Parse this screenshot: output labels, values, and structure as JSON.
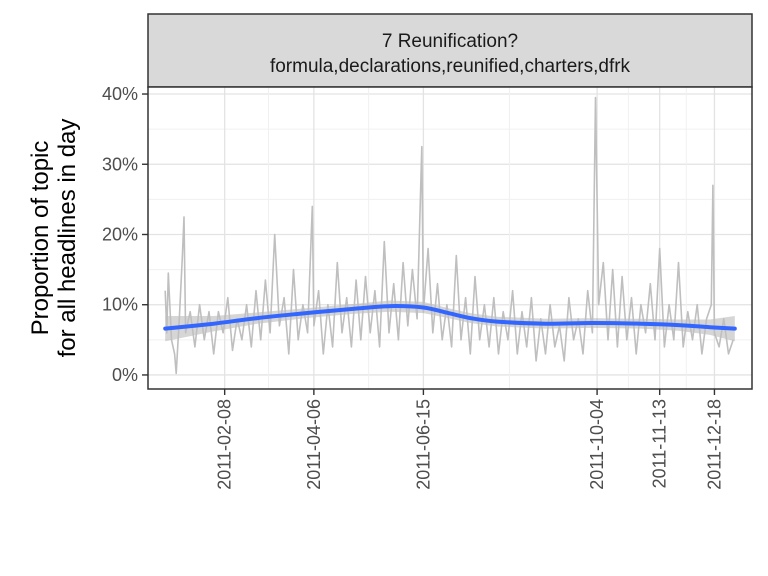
{
  "chart_data": {
    "type": "line",
    "panel": {
      "title": "7 Reunification?",
      "subtitle": "formula,declarations,reunified,charters,dfrk"
    },
    "ylabel_lines": [
      "Proportion of topic",
      "for all headlines in day"
    ],
    "xlabel": "",
    "x_range": [
      "2011-01-01",
      "2011-12-31"
    ],
    "y_range": [
      -0.02,
      0.41
    ],
    "x_ticks": [
      "2011-02-08",
      "2011-04-06",
      "2011-06-15",
      "2011-10-04",
      "2011-11-13",
      "2011-12-18"
    ],
    "y_ticks": [
      0,
      0.1,
      0.2,
      0.3,
      0.4
    ],
    "y_tick_labels": [
      "0%",
      "10%",
      "20%",
      "30%",
      "40%"
    ],
    "grid": true,
    "series": [
      {
        "kind": "raw",
        "color": "#bfbfbf",
        "points": [
          [
            "2011-01-01",
            0.12
          ],
          [
            "2011-01-02",
            0.06
          ],
          [
            "2011-01-03",
            0.145
          ],
          [
            "2011-01-05",
            0.05
          ],
          [
            "2011-01-07",
            0.03
          ],
          [
            "2011-01-08",
            0.002
          ],
          [
            "2011-01-10",
            0.08
          ],
          [
            "2011-01-12",
            0.17
          ],
          [
            "2011-01-13",
            0.225
          ],
          [
            "2011-01-14",
            0.06
          ],
          [
            "2011-01-17",
            0.09
          ],
          [
            "2011-01-20",
            0.04
          ],
          [
            "2011-01-23",
            0.1
          ],
          [
            "2011-01-26",
            0.05
          ],
          [
            "2011-01-29",
            0.09
          ],
          [
            "2011-02-01",
            0.03
          ],
          [
            "2011-02-04",
            0.09
          ],
          [
            "2011-02-07",
            0.06
          ],
          [
            "2011-02-10",
            0.11
          ],
          [
            "2011-02-13",
            0.035
          ],
          [
            "2011-02-16",
            0.08
          ],
          [
            "2011-02-19",
            0.05
          ],
          [
            "2011-02-22",
            0.1
          ],
          [
            "2011-02-25",
            0.04
          ],
          [
            "2011-02-28",
            0.12
          ],
          [
            "2011-03-03",
            0.05
          ],
          [
            "2011-03-06",
            0.135
          ],
          [
            "2011-03-09",
            0.06
          ],
          [
            "2011-03-12",
            0.2
          ],
          [
            "2011-03-15",
            0.07
          ],
          [
            "2011-03-18",
            0.11
          ],
          [
            "2011-03-21",
            0.03
          ],
          [
            "2011-03-24",
            0.15
          ],
          [
            "2011-03-27",
            0.05
          ],
          [
            "2011-03-30",
            0.1
          ],
          [
            "2011-04-02",
            0.06
          ],
          [
            "2011-04-05",
            0.24
          ],
          [
            "2011-04-06",
            0.07
          ],
          [
            "2011-04-09",
            0.12
          ],
          [
            "2011-04-12",
            0.03
          ],
          [
            "2011-04-15",
            0.1
          ],
          [
            "2011-04-18",
            0.04
          ],
          [
            "2011-04-21",
            0.16
          ],
          [
            "2011-04-24",
            0.06
          ],
          [
            "2011-04-27",
            0.11
          ],
          [
            "2011-04-30",
            0.04
          ],
          [
            "2011-05-03",
            0.135
          ],
          [
            "2011-05-06",
            0.05
          ],
          [
            "2011-05-09",
            0.14
          ],
          [
            "2011-05-12",
            0.06
          ],
          [
            "2011-05-15",
            0.12
          ],
          [
            "2011-05-18",
            0.04
          ],
          [
            "2011-05-21",
            0.19
          ],
          [
            "2011-05-24",
            0.06
          ],
          [
            "2011-05-27",
            0.13
          ],
          [
            "2011-05-30",
            0.05
          ],
          [
            "2011-06-02",
            0.16
          ],
          [
            "2011-06-05",
            0.07
          ],
          [
            "2011-06-08",
            0.15
          ],
          [
            "2011-06-11",
            0.08
          ],
          [
            "2011-06-14",
            0.325
          ],
          [
            "2011-06-15",
            0.09
          ],
          [
            "2011-06-18",
            0.18
          ],
          [
            "2011-06-21",
            0.06
          ],
          [
            "2011-06-24",
            0.13
          ],
          [
            "2011-06-27",
            0.05
          ],
          [
            "2011-06-30",
            0.1
          ],
          [
            "2011-07-03",
            0.04
          ],
          [
            "2011-07-06",
            0.17
          ],
          [
            "2011-07-09",
            0.05
          ],
          [
            "2011-07-12",
            0.11
          ],
          [
            "2011-07-15",
            0.03
          ],
          [
            "2011-07-18",
            0.14
          ],
          [
            "2011-07-21",
            0.05
          ],
          [
            "2011-07-24",
            0.1
          ],
          [
            "2011-07-27",
            0.04
          ],
          [
            "2011-07-30",
            0.11
          ],
          [
            "2011-08-02",
            0.03
          ],
          [
            "2011-08-05",
            0.09
          ],
          [
            "2011-08-08",
            0.05
          ],
          [
            "2011-08-11",
            0.12
          ],
          [
            "2011-08-14",
            0.03
          ],
          [
            "2011-08-17",
            0.09
          ],
          [
            "2011-08-20",
            0.04
          ],
          [
            "2011-08-23",
            0.11
          ],
          [
            "2011-08-26",
            0.02
          ],
          [
            "2011-08-29",
            0.08
          ],
          [
            "2011-09-01",
            0.03
          ],
          [
            "2011-09-04",
            0.1
          ],
          [
            "2011-09-07",
            0.04
          ],
          [
            "2011-09-10",
            0.07
          ],
          [
            "2011-09-13",
            0.02
          ],
          [
            "2011-09-16",
            0.11
          ],
          [
            "2011-09-19",
            0.05
          ],
          [
            "2011-09-22",
            0.08
          ],
          [
            "2011-09-25",
            0.03
          ],
          [
            "2011-09-28",
            0.12
          ],
          [
            "2011-10-01",
            0.06
          ],
          [
            "2011-10-03",
            0.395
          ],
          [
            "2011-10-05",
            0.1
          ],
          [
            "2011-10-08",
            0.16
          ],
          [
            "2011-10-11",
            0.05
          ],
          [
            "2011-10-14",
            0.15
          ],
          [
            "2011-10-17",
            0.04
          ],
          [
            "2011-10-20",
            0.14
          ],
          [
            "2011-10-23",
            0.05
          ],
          [
            "2011-10-26",
            0.11
          ],
          [
            "2011-10-29",
            0.03
          ],
          [
            "2011-11-01",
            0.1
          ],
          [
            "2011-11-04",
            0.06
          ],
          [
            "2011-11-07",
            0.13
          ],
          [
            "2011-11-10",
            0.05
          ],
          [
            "2011-11-13",
            0.18
          ],
          [
            "2011-11-16",
            0.04
          ],
          [
            "2011-11-19",
            0.1
          ],
          [
            "2011-11-22",
            0.05
          ],
          [
            "2011-11-25",
            0.16
          ],
          [
            "2011-11-28",
            0.04
          ],
          [
            "2011-12-01",
            0.09
          ],
          [
            "2011-12-04",
            0.05
          ],
          [
            "2011-12-07",
            0.1
          ],
          [
            "2011-12-10",
            0.03
          ],
          [
            "2011-12-13",
            0.08
          ],
          [
            "2011-12-16",
            0.1
          ],
          [
            "2011-12-17",
            0.27
          ],
          [
            "2011-12-18",
            0.06
          ],
          [
            "2011-12-21",
            0.04
          ],
          [
            "2011-12-24",
            0.08
          ],
          [
            "2011-12-27",
            0.03
          ],
          [
            "2011-12-30",
            0.05
          ]
        ]
      },
      {
        "kind": "smooth",
        "color": "#3366ff",
        "band_color": "#999999",
        "points": [
          [
            "2011-01-01",
            0.066,
            0.048,
            0.084
          ],
          [
            "2011-02-01",
            0.073,
            0.062,
            0.084
          ],
          [
            "2011-03-01",
            0.081,
            0.073,
            0.089
          ],
          [
            "2011-04-01",
            0.088,
            0.081,
            0.095
          ],
          [
            "2011-05-01",
            0.094,
            0.087,
            0.101
          ],
          [
            "2011-05-25",
            0.098,
            0.09,
            0.106
          ],
          [
            "2011-06-15",
            0.096,
            0.088,
            0.104
          ],
          [
            "2011-07-01",
            0.088,
            0.081,
            0.095
          ],
          [
            "2011-07-15",
            0.081,
            0.074,
            0.088
          ],
          [
            "2011-08-01",
            0.076,
            0.069,
            0.083
          ],
          [
            "2011-09-01",
            0.073,
            0.066,
            0.08
          ],
          [
            "2011-10-01",
            0.074,
            0.067,
            0.081
          ],
          [
            "2011-11-01",
            0.073,
            0.066,
            0.08
          ],
          [
            "2011-11-25",
            0.071,
            0.063,
            0.079
          ],
          [
            "2011-12-15",
            0.068,
            0.057,
            0.079
          ],
          [
            "2011-12-31",
            0.066,
            0.048,
            0.084
          ]
        ]
      }
    ]
  }
}
